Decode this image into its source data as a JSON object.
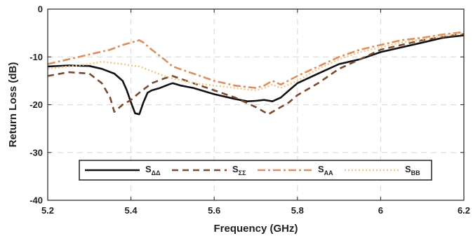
{
  "chart_data": {
    "type": "line",
    "title": "",
    "xlabel": "Frequency (GHz)",
    "ylabel": "Return Loss (dB)",
    "xlim": [
      5.2,
      6.2
    ],
    "ylim": [
      -40,
      0
    ],
    "xticks": [
      5.2,
      5.4,
      5.6,
      5.8,
      6,
      6.2
    ],
    "xtick_labels": [
      "5.2",
      "5.4",
      "5.6",
      "5.8",
      "6",
      "6.2"
    ],
    "yticks": [
      0,
      -10,
      -20,
      -30,
      -40
    ],
    "ytick_labels": [
      "0",
      "-10",
      "-20",
      "-30",
      "-40"
    ],
    "grid": true,
    "legend_position": "bottom-center",
    "series": [
      {
        "name_base": "S",
        "name_sub": "ΔΔ",
        "color": "#111111",
        "dash": "solid",
        "x": [
          5.2,
          5.25,
          5.3,
          5.33,
          5.36,
          5.38,
          5.39,
          5.4,
          5.41,
          5.42,
          5.43,
          5.44,
          5.45,
          5.47,
          5.49,
          5.5,
          5.52,
          5.55,
          5.6,
          5.65,
          5.68,
          5.7,
          5.72,
          5.74,
          5.76,
          5.78,
          5.8,
          5.85,
          5.9,
          5.95,
          6.0,
          6.05,
          6.1,
          6.15,
          6.2
        ],
        "y": [
          -12.0,
          -11.8,
          -11.9,
          -12.5,
          -13.5,
          -15.0,
          -17.0,
          -19.5,
          -21.8,
          -22.0,
          -19.5,
          -17.5,
          -17.0,
          -16.5,
          -15.8,
          -15.5,
          -16.0,
          -16.5,
          -17.8,
          -18.8,
          -19.3,
          -19.2,
          -19.0,
          -19.3,
          -18.5,
          -17.0,
          -15.5,
          -13.5,
          -11.5,
          -10.5,
          -9.0,
          -8.0,
          -7.0,
          -6.0,
          -5.5
        ]
      },
      {
        "name_base": "S",
        "name_sub": "ΣΣ",
        "color": "#7a4a2e",
        "dash": "9,6",
        "x": [
          5.2,
          5.25,
          5.3,
          5.33,
          5.35,
          5.36,
          5.38,
          5.4,
          5.42,
          5.45,
          5.48,
          5.5,
          5.55,
          5.6,
          5.65,
          5.7,
          5.72,
          5.73,
          5.74,
          5.76,
          5.78,
          5.8,
          5.85,
          5.9,
          5.95,
          6.0,
          6.05,
          6.1,
          6.15,
          6.2
        ],
        "y": [
          -14.0,
          -13.2,
          -13.5,
          -15.5,
          -18.5,
          -21.5,
          -20.0,
          -19.0,
          -17.5,
          -15.5,
          -14.5,
          -14.0,
          -15.5,
          -17.0,
          -18.5,
          -20.5,
          -21.5,
          -22.0,
          -21.5,
          -20.5,
          -19.5,
          -18.0,
          -15.5,
          -12.5,
          -10.5,
          -8.5,
          -7.5,
          -6.5,
          -5.8,
          -5.2
        ]
      },
      {
        "name_base": "S",
        "name_sub": "AA",
        "color": "#d98f60",
        "dash": "11,4,3,4",
        "x": [
          5.2,
          5.25,
          5.3,
          5.35,
          5.38,
          5.4,
          5.42,
          5.43,
          5.45,
          5.48,
          5.5,
          5.55,
          5.6,
          5.65,
          5.7,
          5.72,
          5.74,
          5.76,
          5.8,
          5.85,
          5.9,
          5.95,
          6.0,
          6.05,
          6.1,
          6.15,
          6.2
        ],
        "y": [
          -11.5,
          -10.5,
          -9.5,
          -8.5,
          -7.5,
          -7.0,
          -6.5,
          -7.0,
          -8.5,
          -10.5,
          -12.0,
          -13.5,
          -15.0,
          -16.0,
          -16.5,
          -16.0,
          -15.0,
          -15.8,
          -14.0,
          -12.0,
          -10.0,
          -8.5,
          -7.5,
          -6.5,
          -6.0,
          -5.3,
          -4.8
        ]
      },
      {
        "name_base": "S",
        "name_sub": "BB",
        "color": "#f1c98c",
        "dash": "2,3",
        "x": [
          5.2,
          5.25,
          5.3,
          5.33,
          5.35,
          5.38,
          5.4,
          5.42,
          5.45,
          5.48,
          5.5,
          5.55,
          5.6,
          5.65,
          5.7,
          5.72,
          5.74,
          5.76,
          5.8,
          5.85,
          5.9,
          5.95,
          6.0,
          6.05,
          6.1,
          6.15,
          6.2
        ],
        "y": [
          -12.5,
          -12.0,
          -11.5,
          -11.0,
          -11.2,
          -11.5,
          -11.8,
          -12.0,
          -13.0,
          -14.0,
          -14.5,
          -15.5,
          -16.0,
          -16.5,
          -17.0,
          -16.5,
          -15.8,
          -16.5,
          -15.0,
          -12.5,
          -10.5,
          -9.0,
          -8.0,
          -7.0,
          -6.3,
          -5.6,
          -5.0
        ]
      }
    ]
  }
}
